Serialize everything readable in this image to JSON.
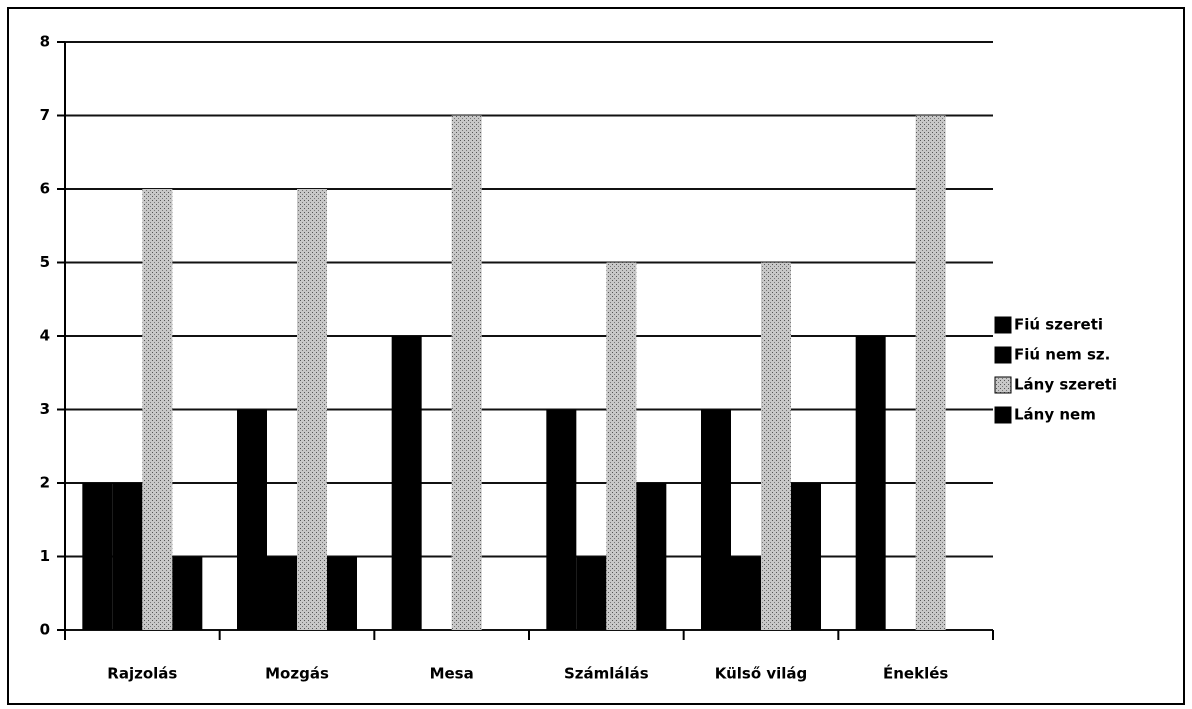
{
  "chart_data": {
    "type": "bar",
    "categories": [
      "Rajzolás",
      "Mozgás",
      "Mesa",
      "Számlálás",
      "Külső világ",
      "Éneklés"
    ],
    "series": [
      {
        "name": "Fiú szereti",
        "color": "#000000",
        "values": [
          2,
          3,
          4,
          3,
          3,
          4
        ]
      },
      {
        "name": "Fiú nem sz.",
        "color": "#000000",
        "values": [
          2,
          1,
          0,
          1,
          1,
          0
        ]
      },
      {
        "name": "Lány szereti",
        "color": "#b4b4b4",
        "values": [
          6,
          6,
          7,
          5,
          5,
          7
        ]
      },
      {
        "name": "Lány nem",
        "color": "#000000",
        "values": [
          1,
          1,
          0,
          2,
          2,
          0
        ]
      }
    ],
    "ylim": [
      0,
      8
    ],
    "yticks": [
      0,
      1,
      2,
      3,
      4,
      5,
      6,
      7,
      8
    ],
    "grid": true,
    "legend": "right"
  }
}
